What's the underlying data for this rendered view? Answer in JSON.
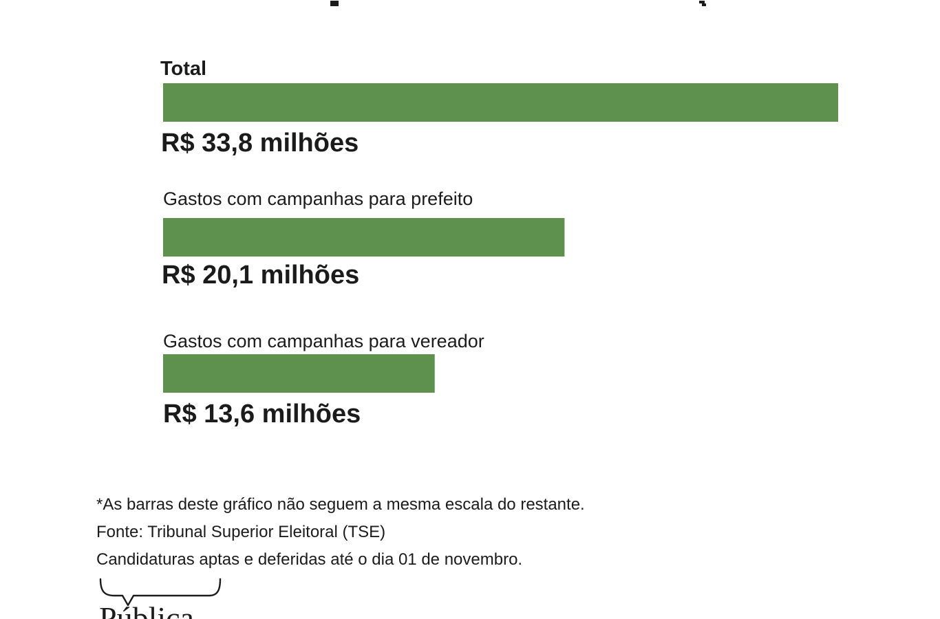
{
  "chart_data": {
    "type": "bar",
    "orientation": "horizontal",
    "categories": [
      "Total",
      "Gastos com campanhas para prefeito",
      "Gastos com campanhas para vereador"
    ],
    "values": [
      33.8,
      20.1,
      13.6
    ],
    "value_labels": [
      "R$ 33,8 milhões",
      "R$ 20,1 milhões",
      "R$ 13,6 milhões"
    ],
    "bar_color": "#5e914e",
    "grid": false,
    "xlim": [
      0,
      33.8
    ]
  },
  "notes": [
    "*As barras deste gráfico não seguem a mesma escala do restante.",
    "Fonte: Tribunal Superior Eleitoral (TSE)",
    "Candidaturas aptas e deferidas até o dia 01 de novembro."
  ],
  "logo": {
    "icon": "brace-logo-icon",
    "text": "Pública"
  },
  "colors": {
    "bar": "#5e914e",
    "text": "#1b1b1b",
    "background": "#ffffff"
  }
}
